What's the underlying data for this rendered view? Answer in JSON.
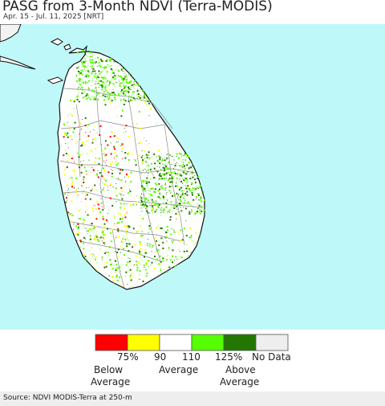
{
  "header": {
    "title": "PASG from 3-Month NDVI (Terra-MODIS)",
    "subtitle": "Apr. 15 - Jul. 11, 2025 [NRT]"
  },
  "map": {
    "region": "Sri Lanka",
    "colors": {
      "ocean": "#bff8f8",
      "land": "#ffffff",
      "neighbor_land": "#f2f2f2",
      "coast": "#111111",
      "district_borders": "#8a8a8a"
    }
  },
  "legend": {
    "classes": [
      {
        "color": "#ff0000"
      },
      {
        "color": "#ffff00"
      },
      {
        "color": "#ffffff"
      },
      {
        "color": "#55ff00"
      },
      {
        "color": "#227700"
      },
      {
        "color": "#eeeeee"
      }
    ],
    "ticks": [
      "75%",
      "90",
      "110",
      "125%"
    ],
    "no_data_label": "No Data",
    "captions": {
      "below": [
        "Below",
        "Average"
      ],
      "average": "Average",
      "above": [
        "Above",
        "Average"
      ]
    }
  },
  "footer": {
    "source": "Source: NDVI MODIS-Terra at 250-m"
  }
}
